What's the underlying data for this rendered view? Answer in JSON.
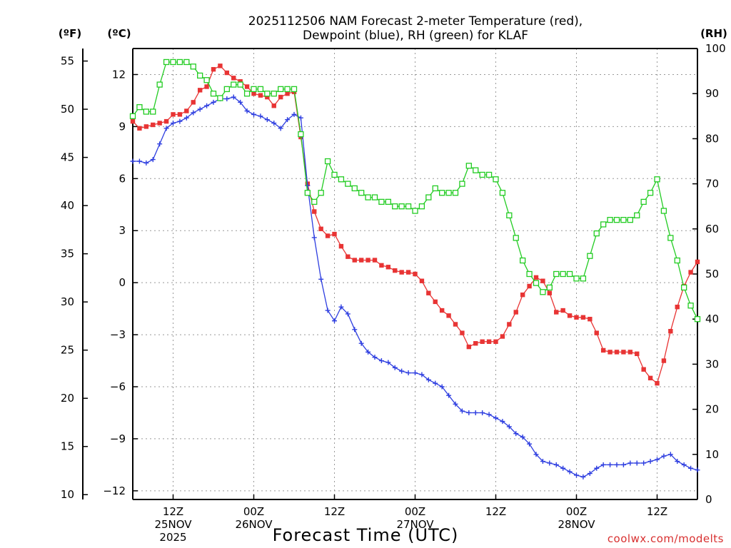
{
  "chart_data": {
    "type": "line",
    "title_line1": "2025112506 NAM Forecast 2-meter Temperature (red),",
    "title_line2": "Dewpoint (blue), RH (green) for KLAF",
    "xlabel": "Forecast Time (UTC)",
    "credit": "coolwx.com/modelts",
    "left_outer_unit": "(ºF)",
    "left_inner_unit": "(ºC)",
    "right_unit": "(RH)",
    "x_range_hours": [
      0,
      84
    ],
    "x_ticks": [
      {
        "hour": 6,
        "lines": [
          "12Z",
          "25NOV",
          "2025"
        ]
      },
      {
        "hour": 18,
        "lines": [
          "00Z",
          "26NOV"
        ]
      },
      {
        "hour": 30,
        "lines": [
          "12Z"
        ]
      },
      {
        "hour": 42,
        "lines": [
          "00Z",
          "27NOV"
        ]
      },
      {
        "hour": 54,
        "lines": [
          "12Z"
        ]
      },
      {
        "hour": 66,
        "lines": [
          "00Z",
          "28NOV"
        ]
      },
      {
        "hour": 78,
        "lines": [
          "12Z"
        ]
      }
    ],
    "grid": true,
    "celsius_range": [
      -12.5,
      13.5
    ],
    "fahrenheit_ticks": [
      10,
      15,
      20,
      25,
      30,
      35,
      40,
      45,
      50,
      55
    ],
    "celsius_ticks": [
      -12,
      -9,
      -6,
      -3,
      0,
      3,
      6,
      9,
      12
    ],
    "rh_range": [
      0,
      100
    ],
    "rh_ticks": [
      0,
      10,
      20,
      30,
      40,
      50,
      60,
      70,
      80,
      90,
      100
    ],
    "series": [
      {
        "key": "temperature",
        "color": "#e83434",
        "marker": "filled-square",
        "axis": "celsius",
        "hours": [
          0,
          1,
          2,
          3,
          4,
          5,
          6,
          7,
          8,
          9,
          10,
          11,
          12,
          13,
          14,
          15,
          16,
          17,
          18,
          19,
          20,
          21,
          22,
          23,
          24,
          25,
          26,
          27,
          28,
          29,
          30,
          31,
          32,
          33,
          34,
          35,
          36,
          37,
          38,
          39,
          40,
          41,
          42,
          43,
          44,
          45,
          46,
          47,
          48,
          49,
          50,
          51,
          52,
          53,
          54,
          55,
          56,
          57,
          58,
          59,
          60,
          61,
          62,
          63,
          64,
          65,
          66,
          67,
          68,
          69,
          70,
          71,
          72,
          73,
          74,
          75,
          76,
          77,
          78,
          79,
          80,
          81,
          82,
          83,
          84
        ],
        "values": [
          9.3,
          8.9,
          9.0,
          9.1,
          9.2,
          9.3,
          9.7,
          9.7,
          9.9,
          10.4,
          11.1,
          11.3,
          12.3,
          12.5,
          12.1,
          11.8,
          11.6,
          11.3,
          10.9,
          10.8,
          10.7,
          10.2,
          10.7,
          10.9,
          11.0,
          8.4,
          5.7,
          4.1,
          3.1,
          2.7,
          2.8,
          2.1,
          1.5,
          1.3,
          1.3,
          1.3,
          1.3,
          1.0,
          0.9,
          0.7,
          0.6,
          0.6,
          0.5,
          0.1,
          -0.6,
          -1.1,
          -1.6,
          -1.9,
          -2.4,
          -2.9,
          -3.7,
          -3.5,
          -3.4,
          -3.4,
          -3.4,
          -3.1,
          -2.4,
          -1.7,
          -0.7,
          -0.2,
          0.3,
          0.1,
          -0.6,
          -1.7,
          -1.6,
          -1.9,
          -2.0,
          -2.0,
          -2.1,
          -2.9,
          -3.9,
          -4.0,
          -4.0,
          -4.0,
          -4.0,
          -4.1,
          -5.0,
          -5.5,
          -5.8,
          -4.5,
          -2.8,
          -1.4,
          -0.2,
          0.6,
          1.2
        ]
      },
      {
        "key": "dewpoint",
        "color": "#2e3ee0",
        "marker": "plus",
        "axis": "celsius",
        "hours": [
          0,
          1,
          2,
          3,
          4,
          5,
          6,
          7,
          8,
          9,
          10,
          11,
          12,
          13,
          14,
          15,
          16,
          17,
          18,
          19,
          20,
          21,
          22,
          23,
          24,
          25,
          26,
          27,
          28,
          29,
          30,
          31,
          32,
          33,
          34,
          35,
          36,
          37,
          38,
          39,
          40,
          41,
          42,
          43,
          44,
          45,
          46,
          47,
          48,
          49,
          50,
          51,
          52,
          53,
          54,
          55,
          56,
          57,
          58,
          59,
          60,
          61,
          62,
          63,
          64,
          65,
          66,
          67,
          68,
          69,
          70,
          71,
          72,
          73,
          74,
          75,
          76,
          77,
          78,
          79,
          80,
          81,
          82,
          83,
          84
        ],
        "values": [
          7.0,
          7.0,
          6.9,
          7.1,
          8.0,
          8.9,
          9.2,
          9.3,
          9.5,
          9.8,
          10.0,
          10.2,
          10.4,
          10.6,
          10.6,
          10.7,
          10.4,
          9.9,
          9.7,
          9.6,
          9.4,
          9.2,
          8.9,
          9.4,
          9.7,
          9.5,
          5.6,
          2.6,
          0.2,
          -1.6,
          -2.2,
          -1.4,
          -1.8,
          -2.7,
          -3.5,
          -4.0,
          -4.3,
          -4.5,
          -4.6,
          -4.9,
          -5.1,
          -5.2,
          -5.2,
          -5.3,
          -5.6,
          -5.8,
          -6.0,
          -6.5,
          -7.0,
          -7.4,
          -7.5,
          -7.5,
          -7.5,
          -7.6,
          -7.8,
          -8.0,
          -8.3,
          -8.7,
          -8.9,
          -9.3,
          -9.9,
          -10.3,
          -10.4,
          -10.5,
          -10.7,
          -10.9,
          -11.1,
          -11.2,
          -11.0,
          -10.7,
          -10.5,
          -10.5,
          -10.5,
          -10.5,
          -10.4,
          -10.4,
          -10.4,
          -10.3,
          -10.2,
          -10.0,
          -9.9,
          -10.3,
          -10.5,
          -10.7,
          -10.8
        ]
      },
      {
        "key": "relative_humidity",
        "color": "#22cc22",
        "marker": "open-square",
        "axis": "rh",
        "hours": [
          0,
          1,
          2,
          3,
          4,
          5,
          6,
          7,
          8,
          9,
          10,
          11,
          12,
          13,
          14,
          15,
          16,
          17,
          18,
          19,
          20,
          21,
          22,
          23,
          24,
          25,
          26,
          27,
          28,
          29,
          30,
          31,
          32,
          33,
          34,
          35,
          36,
          37,
          38,
          39,
          40,
          41,
          42,
          43,
          44,
          45,
          46,
          47,
          48,
          49,
          50,
          51,
          52,
          53,
          54,
          55,
          56,
          57,
          58,
          59,
          60,
          61,
          62,
          63,
          64,
          65,
          66,
          67,
          68,
          69,
          70,
          71,
          72,
          73,
          74,
          75,
          76,
          77,
          78,
          79,
          80,
          81,
          82,
          83,
          84
        ],
        "values": [
          85,
          87,
          86,
          86,
          92,
          97,
          97,
          97,
          97,
          96,
          94,
          93,
          90,
          89,
          91,
          92,
          92,
          90,
          91,
          91,
          90,
          90,
          91,
          91,
          91,
          81,
          68,
          66,
          68,
          75,
          72,
          71,
          70,
          69,
          68,
          67,
          67,
          66,
          66,
          65,
          65,
          65,
          64,
          65,
          67,
          69,
          68,
          68,
          68,
          70,
          74,
          73,
          72,
          72,
          71,
          68,
          63,
          58,
          53,
          50,
          48,
          46,
          47,
          50,
          50,
          50,
          49,
          49,
          54,
          59,
          61,
          62,
          62,
          62,
          62,
          63,
          66,
          68,
          71,
          64,
          58,
          53,
          47,
          43,
          40
        ]
      }
    ]
  }
}
